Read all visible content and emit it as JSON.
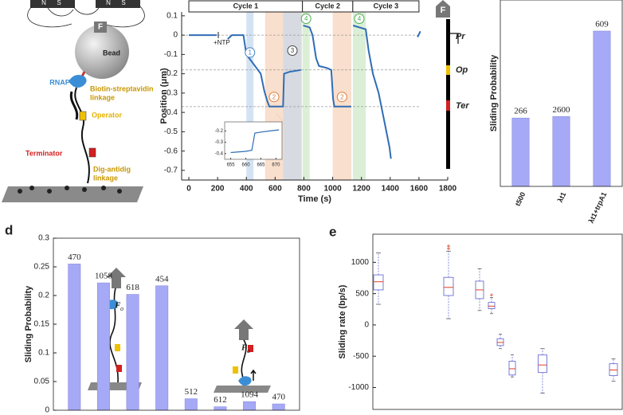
{
  "diagram": {
    "magnet_left": [
      "N",
      "S"
    ],
    "magnet_right": [
      "N",
      "S"
    ],
    "force": "F",
    "bead": "Bead",
    "rnap": "RNAP",
    "biotin": [
      "Biotin-streptavidin",
      "linkage"
    ],
    "operator": "Operator",
    "terminator": "Terminator",
    "dig": [
      "Dig-antidig",
      "linkage"
    ]
  },
  "panel_labels": {
    "d": "d",
    "e": "e"
  },
  "chart_data": [
    {
      "type": "line",
      "xlabel": "Time (s)",
      "ylabel": "Position (μm)",
      "xlim": [
        -50,
        1800
      ],
      "ylim": [
        -0.75,
        0.12
      ],
      "xticks": [
        0,
        200,
        400,
        600,
        800,
        1000,
        1200,
        1400,
        1600,
        1800
      ],
      "yticks": [
        0.1,
        0,
        -0.1,
        -0.2,
        -0.3,
        -0.4,
        -0.5,
        -0.6,
        -0.7
      ],
      "x": [
        0,
        195,
        205,
        270,
        300,
        380,
        400,
        430,
        470,
        500,
        525,
        545,
        560,
        655,
        662,
        700,
        780,
        785,
        795,
        840,
        860,
        885,
        905,
        960,
        990,
        1003,
        1012,
        1130,
        1135,
        1142,
        1230,
        1250,
        1280,
        1320,
        1360,
        1395,
        1405,
        1415,
        1590,
        1610
      ],
      "values": [
        0,
        0,
        null,
        -0.02,
        0,
        0,
        -0.1,
        -0.13,
        -0.17,
        -0.2,
        -0.29,
        -0.34,
        -0.37,
        -0.37,
        -0.2,
        -0.19,
        -0.18,
        null,
        0.05,
        0.04,
        0.0,
        -0.12,
        -0.16,
        -0.17,
        -0.18,
        -0.33,
        -0.37,
        -0.37,
        null,
        0.05,
        0.03,
        -0.08,
        -0.2,
        -0.3,
        -0.45,
        -0.58,
        -0.64,
        null,
        -0.01,
        0.02
      ],
      "color": "#2f6db5",
      "annotation": "+NTP",
      "cycles": [
        {
          "label": "Cycle 1",
          "x0": 0,
          "x1": 790
        },
        {
          "label": "Cycle 2",
          "x0": 790,
          "x1": 1140
        },
        {
          "label": "Cycle 3",
          "x0": 1140,
          "x1": 1600
        }
      ],
      "regions": [
        {
          "label": "1",
          "x0": 400,
          "x1": 450,
          "color": "#cfe0f2",
          "label_color": "#3b7fc4"
        },
        {
          "label": "2",
          "x0": 530,
          "x1": 655,
          "color": "#f8dcc8",
          "label_color": "#e07b39"
        },
        {
          "label": "3",
          "x0": 655,
          "x1": 785,
          "color": "#d3d6de",
          "label_color": "#444"
        },
        {
          "label": "4",
          "x0": 790,
          "x1": 840,
          "color": "#d7edd2",
          "label_color": "#4caf50"
        },
        {
          "label": "2",
          "x0": 1000,
          "x1": 1130,
          "color": "#f8dcc8",
          "label_color": "#e07b39"
        },
        {
          "label": "4",
          "x0": 1140,
          "x1": 1230,
          "color": "#d7edd2",
          "label_color": "#4caf50"
        }
      ],
      "reference_lines": [
        0,
        -0.18,
        -0.37
      ],
      "track": {
        "force": "F",
        "labels": [
          "Pr",
          "Op",
          "Ter"
        ]
      },
      "inset": {
        "xlim": [
          653,
          672
        ],
        "ylim": [
          -0.45,
          -0.12
        ],
        "xticks": [
          655,
          660,
          665,
          670
        ],
        "yticks": [
          -0.2,
          -0.3,
          -0.4
        ],
        "x": [
          655,
          660,
          662,
          663,
          665,
          668,
          671
        ],
        "values": [
          -0.39,
          -0.38,
          -0.37,
          -0.22,
          -0.21,
          -0.2,
          -0.19
        ]
      }
    },
    {
      "type": "bar",
      "ylabel": "Sliding Probability",
      "categories": [
        "t500",
        "λt1",
        "λt1+trpA1"
      ],
      "values": [
        0.22,
        0.225,
        0.5
      ],
      "bar_labels": [
        266,
        2600,
        609
      ],
      "ylim": [
        0,
        0.6
      ],
      "color": "#a6a9f6"
    },
    {
      "type": "bar",
      "ylabel": "Sliding Probability",
      "categories": [
        null,
        null,
        null,
        null,
        null,
        null,
        null,
        null
      ],
      "values": [
        0.255,
        0.222,
        0.202,
        0.217,
        0.02,
        0.006,
        0.015,
        0.011
      ],
      "bar_labels": [
        470,
        1058,
        618,
        454,
        512,
        612,
        1094,
        470
      ],
      "ylim": [
        0,
        0.3
      ],
      "yticks": [
        0,
        0.05,
        0.1,
        0.15,
        0.2,
        0.25,
        0.3
      ],
      "color": "#a6a9f6",
      "insets": [
        {
          "symbol": "F",
          "subscript": "o"
        },
        {
          "symbol": "F",
          "subscript": "a"
        }
      ]
    },
    {
      "type": "box",
      "ylabel": "Sliding rate (bp/s)",
      "ylim": [
        -1350,
        1450
      ],
      "yticks": [
        -1000,
        -500,
        0,
        500,
        1000
      ],
      "color": "#6b6fd8",
      "median_color": "#e0402a",
      "categories": [
        null,
        null,
        null,
        null,
        null,
        null,
        null,
        null
      ],
      "boxes": [
        {
          "min": 330,
          "q1": 560,
          "median": 690,
          "q3": 800,
          "max": 1150,
          "outliers": []
        },
        {
          "min": 100,
          "q1": 470,
          "median": 600,
          "q3": 760,
          "max": 1180,
          "outliers": [
            1220,
            1260
          ]
        },
        {
          "min": 230,
          "q1": 420,
          "median": 560,
          "q3": 700,
          "max": 900,
          "outliers": []
        },
        {
          "min": 180,
          "q1": 260,
          "median": 300,
          "q3": 360,
          "max": 440,
          "outliers": [
            480
          ]
        },
        {
          "min": -380,
          "q1": -330,
          "median": -280,
          "q3": -220,
          "max": -150,
          "outliers": []
        },
        {
          "min": -830,
          "q1": -800,
          "median": -700,
          "q3": -580,
          "max": -480,
          "outliers": []
        },
        {
          "min": -1090,
          "q1": -760,
          "median": -640,
          "q3": -480,
          "max": -380,
          "outliers": []
        },
        {
          "min": -900,
          "q1": -810,
          "median": -720,
          "q3": -620,
          "max": -540,
          "outliers": []
        }
      ]
    }
  ]
}
